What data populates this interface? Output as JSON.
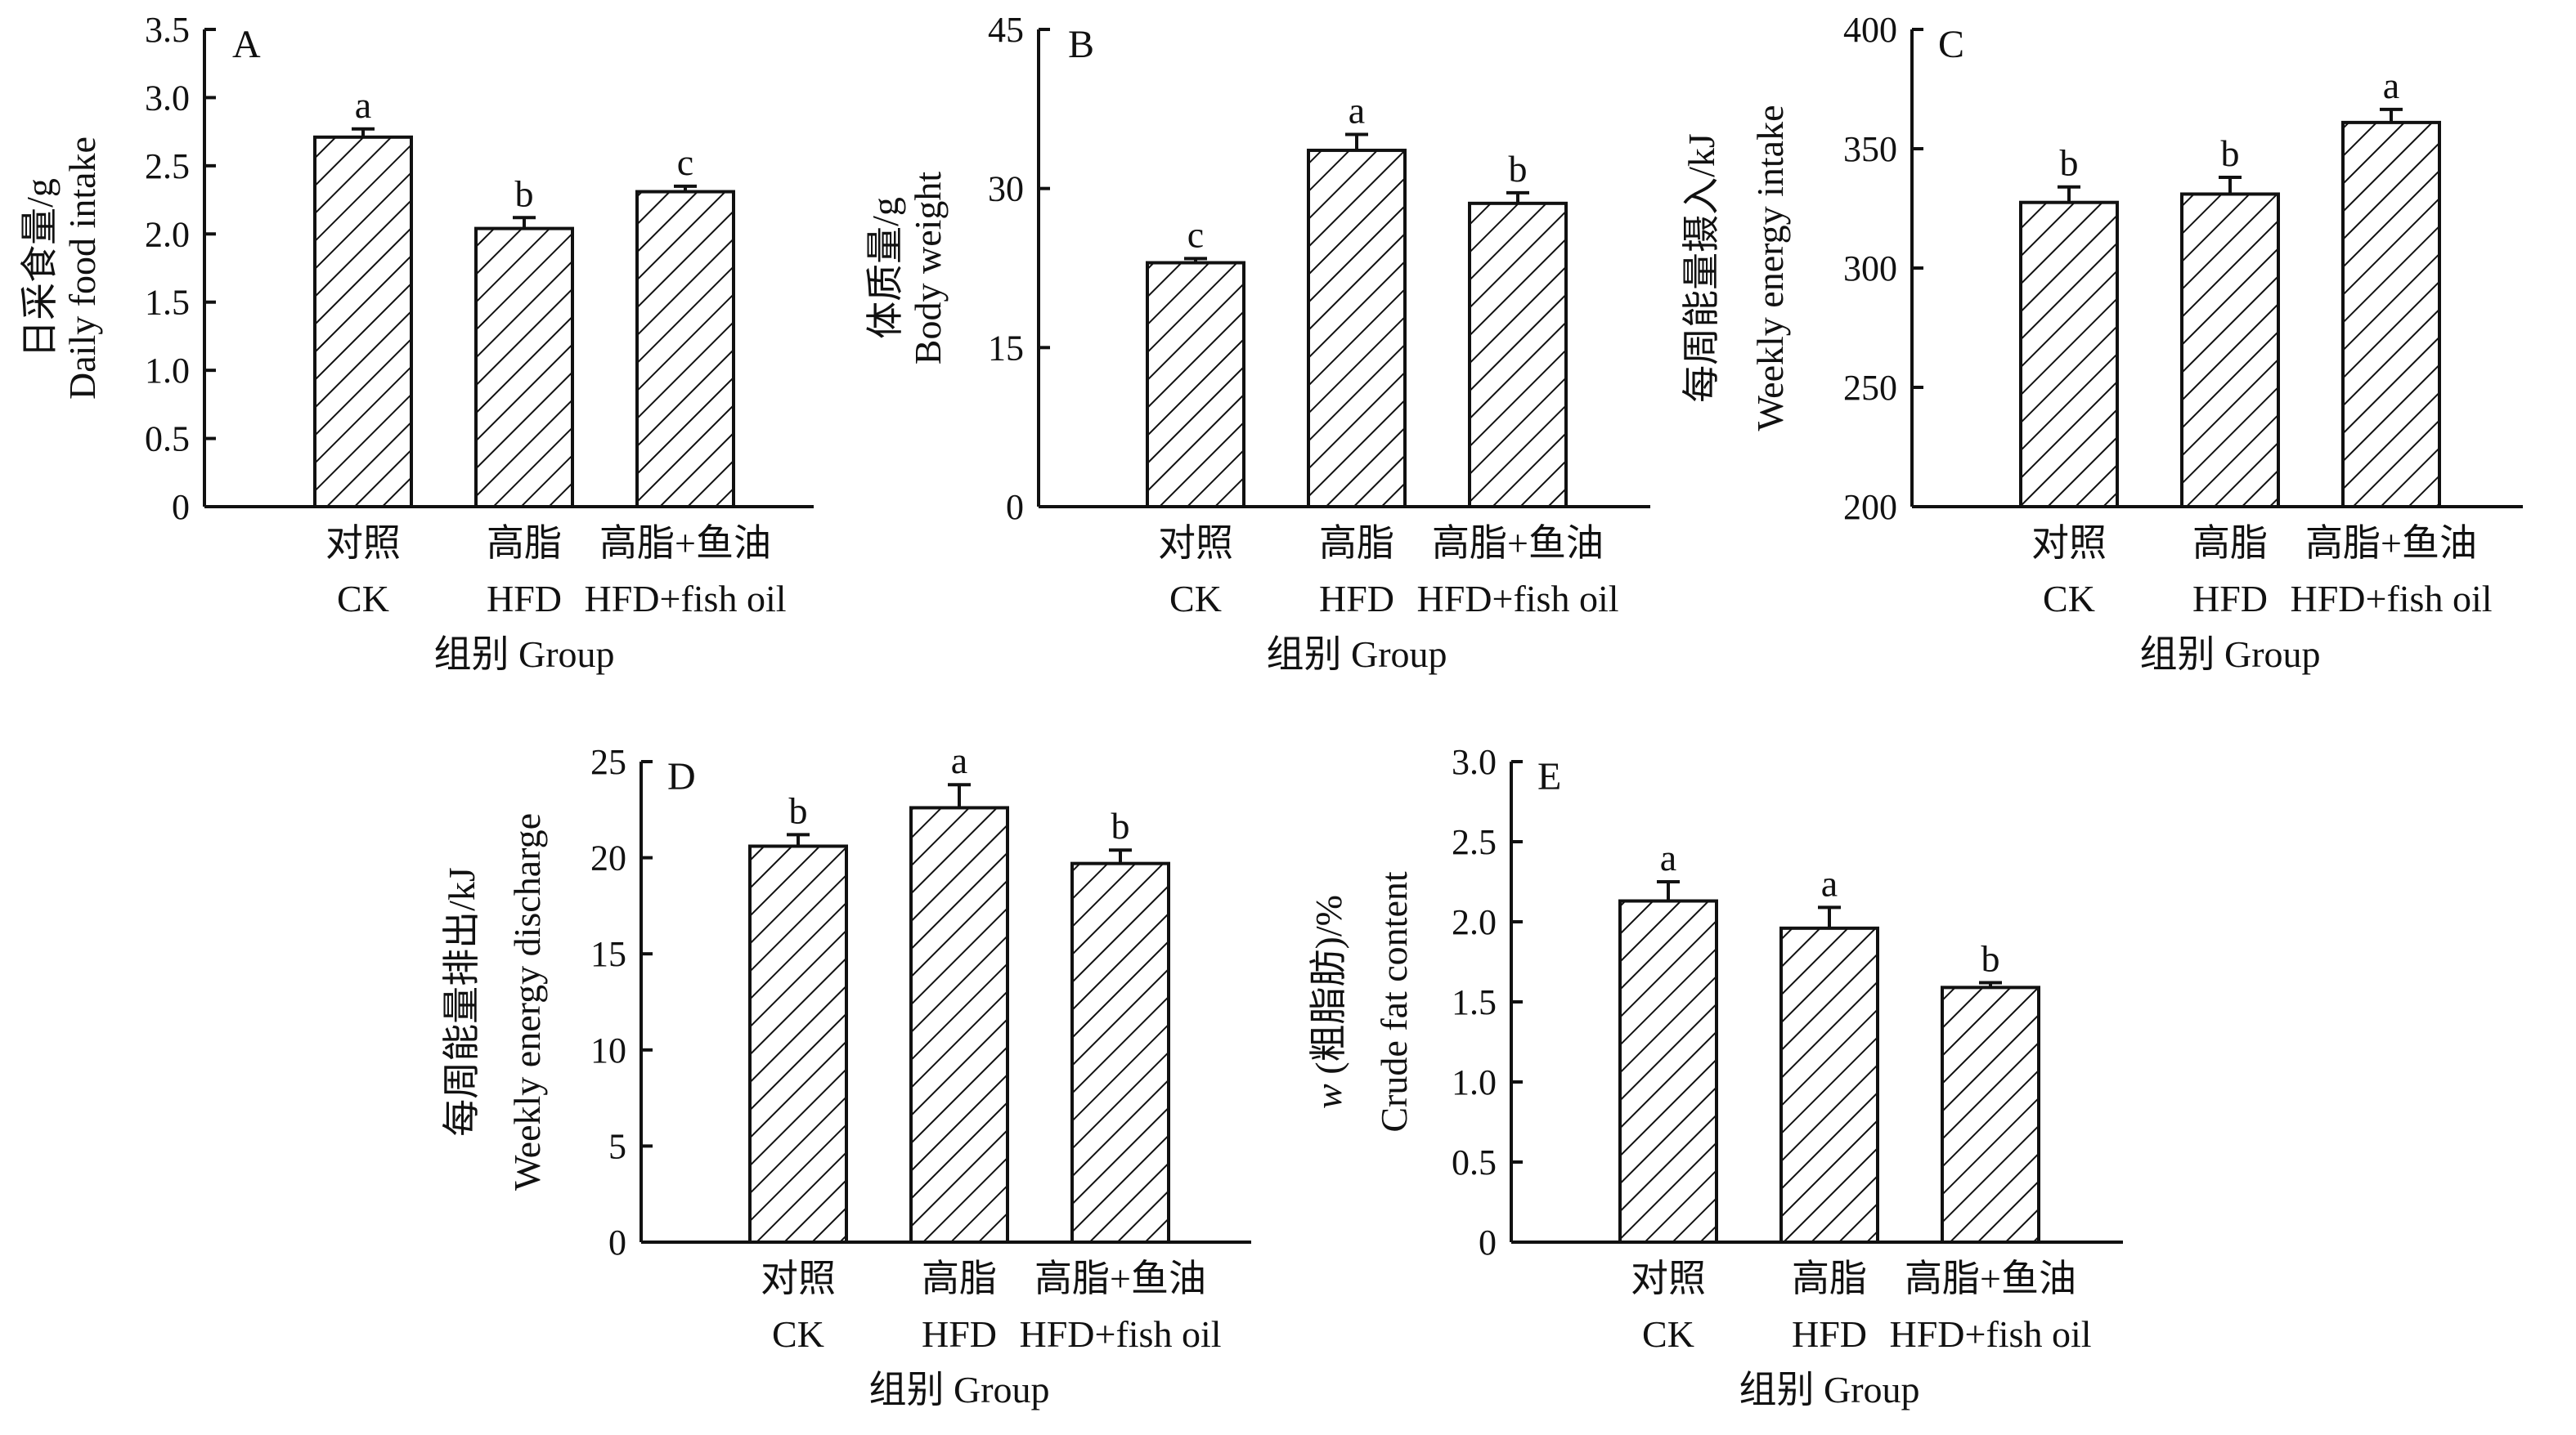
{
  "figure": {
    "category_cn": [
      "对照",
      "高脂",
      "高脂+鱼油"
    ],
    "category_en": [
      "CK",
      "HFD",
      "HFD+fish oil"
    ],
    "group_axis_label": "组别 Group"
  },
  "chart_data": [
    {
      "type": "bar",
      "panel": "A",
      "categories": [
        "对照 CK",
        "高脂 HFD",
        "高脂+鱼油 HFD+fish oil"
      ],
      "values": [
        2.71,
        2.04,
        2.31
      ],
      "errors": [
        0.06,
        0.08,
        0.04
      ],
      "significance": [
        "a",
        "b",
        "c"
      ],
      "ylabel_cn": "日采食量/g",
      "ylabel_en": "Daily food intake",
      "xlabel": "组别 Group",
      "ylim": [
        0,
        3.5
      ],
      "yticks": [
        0,
        0.5,
        1.0,
        1.5,
        2.0,
        2.5,
        3.0,
        3.5
      ],
      "ytick_labels": [
        "0",
        "0.5",
        "1.0",
        "1.5",
        "2.0",
        "2.5",
        "3.0",
        "3.5"
      ]
    },
    {
      "type": "bar",
      "panel": "B",
      "categories": [
        "对照 CK",
        "高脂 HFD",
        "高脂+鱼油 HFD+fish oil"
      ],
      "values": [
        23.0,
        33.6,
        28.6
      ],
      "errors": [
        0.4,
        1.5,
        1.0
      ],
      "significance": [
        "c",
        "a",
        "b"
      ],
      "ylabel_cn": "体质量/g",
      "ylabel_en": "Body weight",
      "xlabel": "组别 Group",
      "ylim": [
        0,
        45
      ],
      "yticks": [
        0,
        15,
        30,
        45
      ],
      "ytick_labels": [
        "0",
        "15",
        "30",
        "45"
      ]
    },
    {
      "type": "bar",
      "panel": "C",
      "categories": [
        "对照 CK",
        "高脂 HFD",
        "高脂+鱼油 HFD+fish oil"
      ],
      "values": [
        327.5,
        331,
        361
      ],
      "errors": [
        6.5,
        7,
        5.5
      ],
      "significance": [
        "b",
        "b",
        "a"
      ],
      "ylabel_cn": "每周能量摄入/kJ",
      "ylabel_en": "Weekly energy intake",
      "xlabel": "组别 Group",
      "ylim": [
        200,
        400
      ],
      "yticks": [
        200,
        250,
        300,
        350,
        400
      ],
      "ytick_labels": [
        "200",
        "250",
        "300",
        "350",
        "400"
      ]
    },
    {
      "type": "bar",
      "panel": "D",
      "categories": [
        "对照 CK",
        "高脂 HFD",
        "高脂+鱼油 HFD+fish oil"
      ],
      "values": [
        20.6,
        22.6,
        19.7
      ],
      "errors": [
        0.6,
        1.2,
        0.7
      ],
      "significance": [
        "b",
        "a",
        "b"
      ],
      "ylabel_cn": "每周能量排出/kJ",
      "ylabel_en": "Weekly energy discharge",
      "xlabel": "组别 Group",
      "ylim": [
        0,
        25
      ],
      "yticks": [
        0,
        5,
        10,
        15,
        20,
        25
      ],
      "ytick_labels": [
        "0",
        "5",
        "10",
        "15",
        "20",
        "25"
      ]
    },
    {
      "type": "bar",
      "panel": "E",
      "categories": [
        "对照 CK",
        "高脂 HFD",
        "高脂+鱼油 HFD+fish oil"
      ],
      "values": [
        2.13,
        1.96,
        1.59
      ],
      "errors": [
        0.12,
        0.13,
        0.03
      ],
      "significance": [
        "a",
        "a",
        "b"
      ],
      "ylabel_cn_italic": "w",
      "ylabel_cn_rest": " (粗脂肪)/%",
      "ylabel_en": "Crude fat content",
      "xlabel": "组别 Group",
      "ylim": [
        0,
        3.0
      ],
      "yticks": [
        0,
        0.5,
        1.0,
        1.5,
        2.0,
        2.5,
        3.0
      ],
      "ytick_labels": [
        "0",
        "0.5",
        "1.0",
        "1.5",
        "2.0",
        "2.5",
        "3.0"
      ]
    }
  ]
}
